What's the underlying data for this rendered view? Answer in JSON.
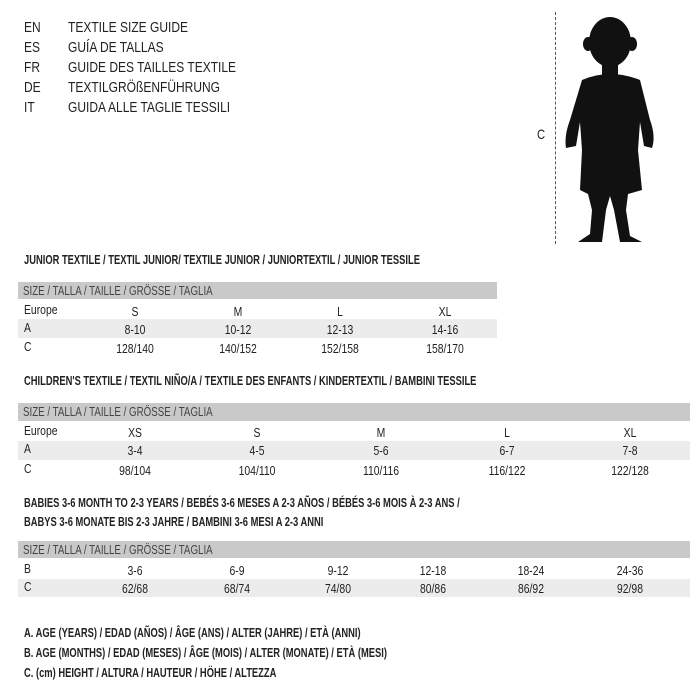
{
  "header": [
    {
      "code": "EN",
      "text": "TEXTILE SIZE GUIDE"
    },
    {
      "code": "ES",
      "text": "GUÍA DE TALLAS"
    },
    {
      "code": "FR",
      "text": "GUIDE DES TAILLES TEXTILE"
    },
    {
      "code": "DE",
      "text": "TEXTILGRÖßENFÜHRUNG"
    },
    {
      "code": "IT",
      "text": "GUIDA ALLE TAGLIE TESSILI"
    }
  ],
  "figure": {
    "label": "C",
    "icon": "child-silhouette"
  },
  "size_bar": "SIZE / TALLA / TAILLE / GRÖSSE / TAGLIA",
  "junior": {
    "title": "JUNIOR TEXTILE / TEXTIL JUNIOR/ TEXTILE JUNIOR / JUNIORTEXTIL / JUNIOR TESSILE",
    "rows": [
      {
        "label": "Europe",
        "values": [
          "S",
          "M",
          "L",
          "XL"
        ]
      },
      {
        "label": "A",
        "values": [
          "8-10",
          "10-12",
          "12-13",
          "14-16"
        ]
      },
      {
        "label": "C",
        "values": [
          "128/140",
          "140/152",
          "152/158",
          "158/170"
        ]
      }
    ]
  },
  "children": {
    "title": "CHILDREN'S TEXTILE / TEXTIL NIÑO/A / TEXTILE DES ENFANTS / KINDERTEXTIL / BAMBINI TESSILE",
    "rows": [
      {
        "label": "Europe",
        "values": [
          "XS",
          "S",
          "M",
          "L",
          "XL"
        ]
      },
      {
        "label": "A",
        "values": [
          "3-4",
          "4-5",
          "5-6",
          "6-7",
          "7-8"
        ]
      },
      {
        "label": "C",
        "values": [
          "98/104",
          "104/110",
          "110/116",
          "116/122",
          "122/128"
        ]
      }
    ]
  },
  "babies": {
    "title_line1": "BABIES 3-6 MONTH TO 2-3 YEARS / BEBÉS 3-6 MESES A 2-3 AÑOS / BÉBÉS 3-6 MOIS À 2-3 ANS /",
    "title_line2": "BABYS 3-6 MONATE BIS 2-3 JAHRE / BAMBINI 3-6 MESI A 2-3 ANNI",
    "rows": [
      {
        "label": "B",
        "values": [
          "3-6",
          "6-9",
          "9-12",
          "12-18",
          "18-24",
          "24-36"
        ]
      },
      {
        "label": "C",
        "values": [
          "62/68",
          "68/74",
          "74/80",
          "80/86",
          "86/92",
          "92/98"
        ]
      }
    ]
  },
  "legend": [
    "A. AGE (YEARS) / EDAD (AÑOS) / ÂGE (ANS) / ALTER (JAHRE) / ETÀ (ANNI)",
    "B. AGE (MONTHS) / EDAD (MESES) / ÂGE (MOIS) / ALTER (MONATE) / ETÀ (MESI)",
    "C. (cm) HEIGHT / ALTURA / HAUTEUR / HÖHE / ALTEZZA"
  ]
}
